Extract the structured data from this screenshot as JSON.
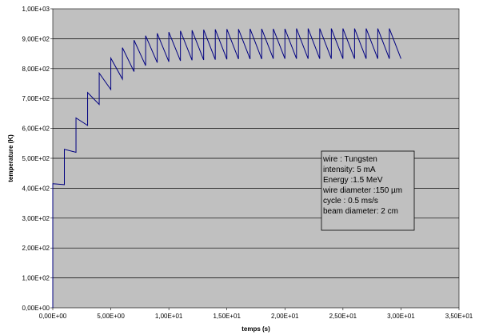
{
  "chart_data": {
    "type": "line",
    "title": "",
    "xlabel": "temps (s)",
    "ylabel": "temperature (K)",
    "xlim": [
      0,
      35
    ],
    "ylim": [
      0,
      1000
    ],
    "x_ticks": [
      "0,00E+00",
      "5,00E+00",
      "1,00E+01",
      "1,50E+01",
      "2,00E+01",
      "2,50E+01",
      "3,00E+01",
      "3,50E+01"
    ],
    "y_ticks": [
      "0,00E+00",
      "1,00E+02",
      "2,00E+02",
      "3,00E+02",
      "4,00E+02",
      "5,00E+02",
      "6,00E+02",
      "7,00E+02",
      "8,00E+02",
      "9,00E+02",
      "1,00E+03"
    ],
    "grid": "horizontal",
    "legend": "none",
    "plot_background": "#c0c0c0",
    "line_color": "#000080",
    "series": [
      {
        "points": [
          [
            0,
            0
          ],
          [
            0,
            415
          ],
          [
            1,
            412
          ],
          [
            1,
            530
          ],
          [
            2,
            520
          ],
          [
            2,
            635
          ],
          [
            3,
            610
          ],
          [
            3,
            720
          ],
          [
            4,
            680
          ],
          [
            4,
            785
          ],
          [
            5,
            730
          ],
          [
            5,
            835
          ],
          [
            6,
            765
          ],
          [
            6,
            870
          ],
          [
            7,
            790
          ],
          [
            7,
            895
          ],
          [
            8,
            810
          ],
          [
            8,
            910
          ],
          [
            9,
            820
          ],
          [
            9,
            918
          ],
          [
            10,
            823
          ],
          [
            10,
            922
          ],
          [
            11,
            826
          ],
          [
            11,
            926
          ],
          [
            12,
            828
          ],
          [
            12,
            928
          ],
          [
            13,
            829
          ],
          [
            13,
            930
          ],
          [
            14,
            830
          ],
          [
            14,
            931
          ],
          [
            15,
            831
          ],
          [
            15,
            932
          ],
          [
            16,
            832
          ],
          [
            16,
            932
          ],
          [
            17,
            832
          ],
          [
            17,
            933
          ],
          [
            18,
            832
          ],
          [
            18,
            933
          ],
          [
            19,
            833
          ],
          [
            19,
            933
          ],
          [
            20,
            833
          ],
          [
            20,
            933
          ],
          [
            21,
            833
          ],
          [
            21,
            934
          ],
          [
            22,
            833
          ],
          [
            22,
            934
          ],
          [
            23,
            833
          ],
          [
            23,
            934
          ],
          [
            24,
            833
          ],
          [
            24,
            934
          ],
          [
            25,
            833
          ],
          [
            25,
            934
          ],
          [
            26,
            833
          ],
          [
            26,
            934
          ],
          [
            27,
            833
          ],
          [
            27,
            934
          ],
          [
            28,
            833
          ],
          [
            28,
            934
          ],
          [
            29,
            833
          ],
          [
            29,
            934
          ],
          [
            30,
            833
          ]
        ]
      }
    ],
    "annotation": {
      "lines": [
        "wire : Tungsten",
        "intensity: 5 mA",
        "Energy :1.5 MeV",
        "wire diameter :150 µm",
        "cycle : 0.5 ms/s",
        "beam diameter: 2 cm"
      ]
    }
  }
}
